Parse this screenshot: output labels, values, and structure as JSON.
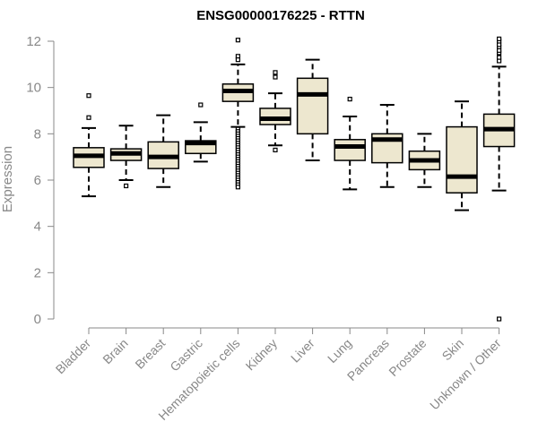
{
  "chart_data": {
    "type": "box",
    "title": "ENSG00000176225 - RTTN",
    "xlabel": "",
    "ylabel": "Expression",
    "ylim": [
      0,
      12
    ],
    "yticks": [
      0,
      2,
      4,
      6,
      8,
      10,
      12
    ],
    "grid": false,
    "legend": "none",
    "box_fill": "#ede7cf",
    "median_color": "#000000",
    "categories": [
      "Bladder",
      "Brain",
      "Breast",
      "Gastric",
      "Hematopoietic cells",
      "Kidney",
      "Liver",
      "Lung",
      "Pancreas",
      "Prostate",
      "Skin",
      "Unknown / Other"
    ],
    "boxes": [
      {
        "whisker_low": 5.3,
        "q1": 6.55,
        "median": 7.05,
        "q3": 7.4,
        "whisker_high": 8.25,
        "outliers": [
          8.7,
          9.65
        ]
      },
      {
        "whisker_low": 6.0,
        "q1": 6.85,
        "median": 7.15,
        "q3": 7.35,
        "whisker_high": 8.35,
        "outliers": [
          5.75
        ]
      },
      {
        "whisker_low": 5.7,
        "q1": 6.5,
        "median": 7.0,
        "q3": 7.65,
        "whisker_high": 8.8,
        "outliers": []
      },
      {
        "whisker_low": 6.8,
        "q1": 7.15,
        "median": 7.6,
        "q3": 7.7,
        "whisker_high": 8.5,
        "outliers": [
          9.25
        ]
      },
      {
        "whisker_low": 8.3,
        "q1": 9.4,
        "median": 9.85,
        "q3": 10.15,
        "whisker_high": 11.0,
        "outliers": [
          12.05,
          11.35,
          11.2,
          8.2,
          8.1,
          8.0,
          7.9,
          7.8,
          7.7,
          7.6,
          7.5,
          7.4,
          7.3,
          7.2,
          7.1,
          7.0,
          6.9,
          6.8,
          6.7,
          6.6,
          6.5,
          6.4,
          6.3,
          6.2,
          6.1,
          6.0,
          5.9,
          5.8,
          5.7
        ]
      },
      {
        "whisker_low": 7.5,
        "q1": 8.4,
        "median": 8.65,
        "q3": 9.1,
        "whisker_high": 9.75,
        "outliers": [
          10.45,
          10.65,
          7.3
        ]
      },
      {
        "whisker_low": 6.85,
        "q1": 8.0,
        "median": 9.7,
        "q3": 10.4,
        "whisker_high": 11.2,
        "outliers": []
      },
      {
        "whisker_low": 5.6,
        "q1": 6.85,
        "median": 7.45,
        "q3": 7.75,
        "whisker_high": 8.75,
        "outliers": [
          9.5
        ]
      },
      {
        "whisker_low": 5.7,
        "q1": 6.75,
        "median": 7.75,
        "q3": 8.0,
        "whisker_high": 9.25,
        "outliers": []
      },
      {
        "whisker_low": 5.7,
        "q1": 6.45,
        "median": 6.85,
        "q3": 7.25,
        "whisker_high": 8.0,
        "outliers": []
      },
      {
        "whisker_low": 4.7,
        "q1": 5.45,
        "median": 6.15,
        "q3": 8.3,
        "whisker_high": 9.4,
        "outliers": []
      },
      {
        "whisker_low": 5.55,
        "q1": 7.45,
        "median": 8.2,
        "q3": 8.85,
        "whisker_high": 10.9,
        "outliers": [
          0.0,
          11.15,
          11.3,
          11.5,
          11.6,
          11.75,
          11.85,
          12.0,
          12.1
        ]
      }
    ]
  }
}
